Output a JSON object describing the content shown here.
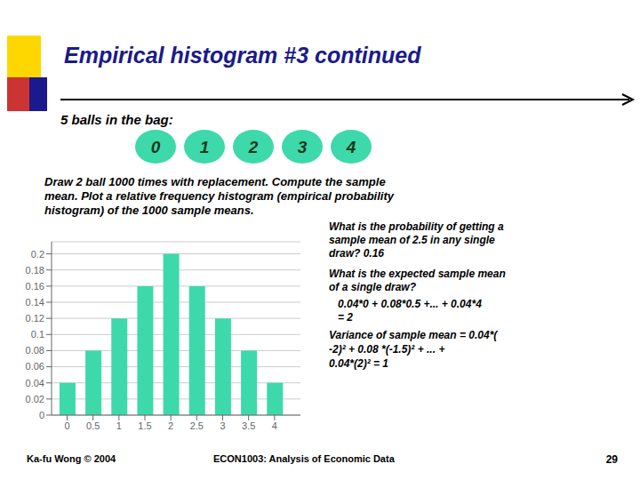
{
  "chart_data": {
    "type": "bar",
    "title": "Empirical histogram #3 continued",
    "subtitle": "5 balls in the bag:",
    "annotations": [
      "0",
      "1",
      "2",
      "3",
      "4",
      "Draw 2 ball 1000 times with replacement.  Compute the sample",
      "mean.  Plot a relative frequency histogram (empirical probability",
      "histogram) of the 1000 sample means.",
      "What is the probability of getting a",
      "sample mean of 2.5 in any single",
      "draw?    0.16",
      "What is the expected sample mean",
      "of a single draw?",
      "0.04*0 + 0.08*0.5 +... + 0.04*4",
      "= 2",
      "Variance of sample mean = 0.04*(",
      "-2)² + 0.08 *(-1.5)² + ... +",
      "0.04*(2)² = 1",
      "Ka-fu Wong © 2004",
      "ECON1003:  Analysis of Economic Data",
      "29"
    ],
    "x": [
      0,
      0.5,
      1,
      1.5,
      2,
      2.5,
      3,
      3.5,
      4
    ],
    "values": [
      0.04,
      0.08,
      0.12,
      0.16,
      0.2,
      0.16,
      0.12,
      0.08,
      0.04
    ],
    "color": "#3DD9AA",
    "xlim": [
      -0.3,
      4.5
    ],
    "xticks": [
      0,
      0.5,
      1,
      1.5,
      2,
      2.5,
      3,
      3.5,
      4
    ],
    "ylim": [
      0,
      0.215
    ],
    "yticks": [
      0,
      0.02,
      0.04,
      0.06,
      0.08,
      0.1,
      0.12,
      0.14,
      0.16,
      0.18,
      0.2
    ],
    "grid": true
  }
}
